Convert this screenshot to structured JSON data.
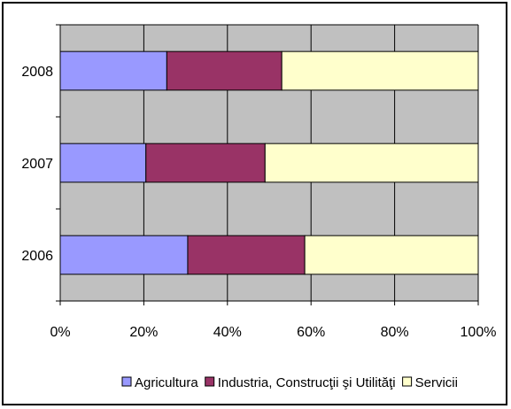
{
  "chart_data": {
    "type": "bar",
    "orientation": "horizontal",
    "stacking": "percent",
    "categories": [
      "2008",
      "2007",
      "2006"
    ],
    "series": [
      {
        "name": "Agricultura",
        "values": [
          25.5,
          20.5,
          30.5
        ],
        "color": "#9999ff"
      },
      {
        "name": "Industria, Construcţii şi Utilităţi",
        "values": [
          27.5,
          28.5,
          28.0
        ],
        "color": "#993366"
      },
      {
        "name": "Servicii",
        "values": [
          47.0,
          51.0,
          41.5
        ],
        "color": "#ffffcc"
      }
    ],
    "xlim": [
      0,
      100
    ],
    "x_ticks": [
      "0%",
      "20%",
      "40%",
      "60%",
      "80%",
      "100%"
    ],
    "plot_background": "#c0c0c0",
    "grid": true,
    "legend_position": "bottom"
  }
}
